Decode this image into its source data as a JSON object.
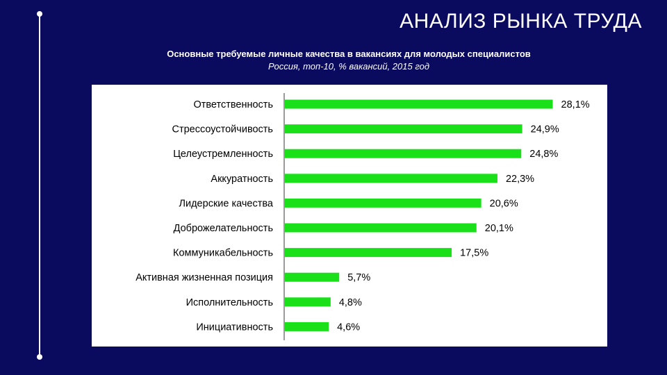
{
  "slide": {
    "title": "АНАЛИЗ РЫНКА ТРУДА"
  },
  "chart_data": {
    "type": "bar",
    "orientation": "horizontal",
    "title": "Основные требуемые личные качества в вакансиях для молодых специалистов",
    "subtitle": "Россия, топ-10, % вакансий, 2015 год",
    "categories": [
      "Ответственность",
      "Стрессоустойчивость",
      "Целеустремленность",
      "Аккуратность",
      "Лидерские качества",
      "Доброжелательность",
      "Коммуникабельность",
      "Активная жизненная позиция",
      "Исполнительность",
      "Инициативность"
    ],
    "values": [
      28.1,
      24.9,
      24.8,
      22.3,
      20.6,
      20.1,
      17.5,
      5.7,
      4.8,
      4.6
    ],
    "value_labels": [
      "28,1%",
      "24,9%",
      "24,8%",
      "22,3%",
      "20,6%",
      "20,1%",
      "17,5%",
      "5,7%",
      "4,8%",
      "4,6%"
    ],
    "xlabel": "",
    "ylabel": "",
    "xlim": [
      0,
      30
    ],
    "bar_color": "#19e019",
    "grid": false,
    "legend": "none"
  }
}
